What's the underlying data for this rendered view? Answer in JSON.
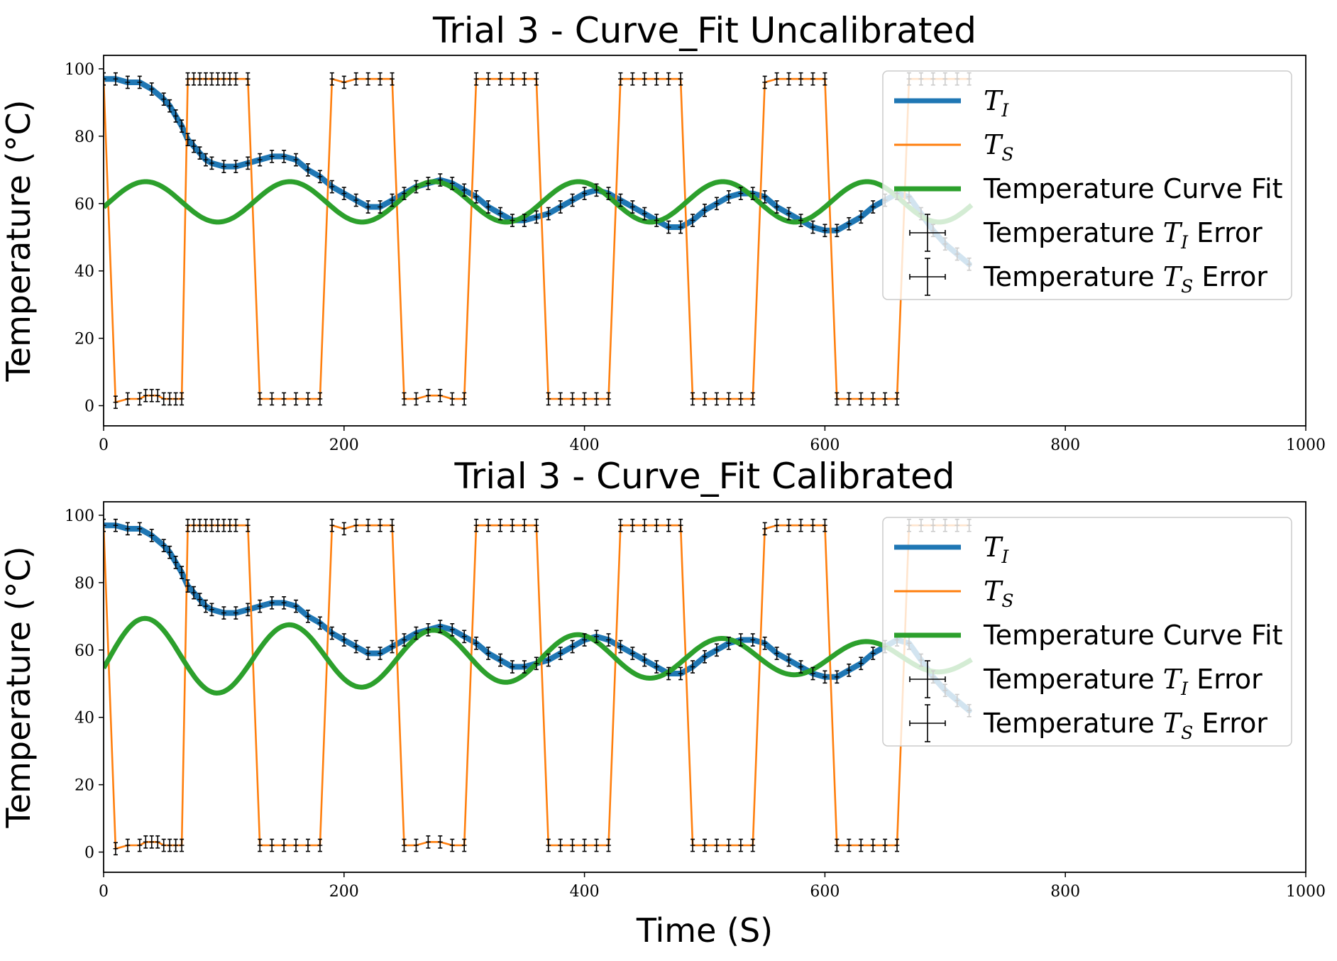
{
  "chart_data": [
    {
      "type": "line",
      "title": "Trial 3 - Curve_Fit Uncalibrated",
      "xlabel": "",
      "ylabel": "Temperature (°C)",
      "xlim": [
        0,
        1000
      ],
      "ylim": [
        -6,
        104
      ],
      "xticks": [
        0,
        200,
        400,
        600,
        800,
        1000
      ],
      "yticks": [
        0,
        20,
        40,
        60,
        80,
        100
      ],
      "grid": false,
      "legend_position": "top-right",
      "legend": [
        {
          "kind": "line",
          "color": "#1f77b4",
          "base": "T",
          "sub": "I",
          "prefix": "",
          "suffix": ""
        },
        {
          "kind": "line",
          "color": "#ff7f0e",
          "base": "T",
          "sub": "S",
          "prefix": "",
          "suffix": ""
        },
        {
          "kind": "line",
          "color": "#2ca02c",
          "base": "",
          "sub": "",
          "prefix": "Temperature Curve Fit",
          "suffix": ""
        },
        {
          "kind": "errorbar",
          "color": "#000000",
          "base": "T",
          "sub": "I",
          "prefix": "Temperature ",
          "suffix": " Error"
        },
        {
          "kind": "errorbar",
          "color": "#000000",
          "base": "T",
          "sub": "S",
          "prefix": "Temperature ",
          "suffix": " Error"
        }
      ],
      "fit": {
        "mean": 60.5,
        "amplitude": 6,
        "decay": 0,
        "period": 120,
        "phase_peak": 35,
        "x_start": 0,
        "x_end": 723
      },
      "error": {
        "y_err": 1.8,
        "x_err": 2
      }
    },
    {
      "type": "line",
      "title": "Trial 3 - Curve_Fit Calibrated",
      "xlabel": "Time (S)",
      "ylabel": "Temperature (°C)",
      "xlim": [
        0,
        1000
      ],
      "ylim": [
        -6,
        104
      ],
      "xticks": [
        0,
        200,
        400,
        600,
        800,
        1000
      ],
      "yticks": [
        0,
        20,
        40,
        60,
        80,
        100
      ],
      "grid": false,
      "legend_position": "top-right",
      "legend": [
        {
          "kind": "line",
          "color": "#1f77b4",
          "base": "T",
          "sub": "I",
          "prefix": "",
          "suffix": ""
        },
        {
          "kind": "line",
          "color": "#ff7f0e",
          "base": "T",
          "sub": "S",
          "prefix": "",
          "suffix": ""
        },
        {
          "kind": "line",
          "color": "#2ca02c",
          "base": "",
          "sub": "",
          "prefix": "Temperature Curve Fit",
          "suffix": ""
        },
        {
          "kind": "errorbar",
          "color": "#000000",
          "base": "T",
          "sub": "I",
          "prefix": "Temperature ",
          "suffix": " Error"
        },
        {
          "kind": "errorbar",
          "color": "#000000",
          "base": "T",
          "sub": "S",
          "prefix": "Temperature ",
          "suffix": " Error"
        }
      ],
      "fit": {
        "mean": 57.8,
        "amplitude": 12.2,
        "decay": 0.0015,
        "period": 120,
        "phase_peak": 35,
        "x_start": 0,
        "x_end": 723
      },
      "error": {
        "y_err": 1.8,
        "x_err": 2
      }
    }
  ],
  "series": {
    "T_I": {
      "name": "T_I",
      "color": "#1f77b4",
      "x": [
        0,
        10,
        20,
        30,
        40,
        50,
        55,
        60,
        65,
        70,
        75,
        80,
        85,
        90,
        100,
        110,
        120,
        130,
        140,
        150,
        160,
        170,
        180,
        190,
        200,
        210,
        220,
        230,
        240,
        250,
        260,
        270,
        280,
        290,
        300,
        310,
        320,
        330,
        340,
        350,
        360,
        370,
        380,
        390,
        400,
        410,
        420,
        430,
        440,
        450,
        460,
        470,
        480,
        490,
        500,
        510,
        520,
        530,
        540,
        550,
        560,
        570,
        580,
        590,
        600,
        610,
        620,
        630,
        640,
        650,
        660,
        670,
        680,
        690,
        700,
        710,
        720
      ],
      "y": [
        97,
        97,
        96,
        96,
        94,
        91,
        89,
        86,
        83,
        79,
        77,
        75,
        73,
        72,
        71,
        71,
        72,
        73,
        74,
        74,
        73,
        70,
        68,
        65,
        63,
        61,
        59,
        59,
        61,
        63,
        65,
        66,
        67,
        66,
        64,
        62,
        59,
        57,
        55,
        55,
        56,
        57,
        59,
        61,
        63,
        64,
        63,
        61,
        59,
        57,
        55,
        53,
        53,
        55,
        58,
        60,
        62,
        63,
        63,
        62,
        59,
        57,
        55,
        53,
        52,
        52,
        54,
        56,
        59,
        61,
        63,
        62,
        57,
        52,
        48,
        45,
        42
      ]
    },
    "T_S": {
      "name": "T_S",
      "color": "#ff7f0e",
      "x": [
        0,
        10,
        20,
        30,
        35,
        40,
        45,
        50,
        55,
        60,
        65,
        70,
        75,
        80,
        85,
        90,
        95,
        100,
        105,
        110,
        120,
        130,
        140,
        150,
        160,
        170,
        180,
        190,
        200,
        210,
        220,
        230,
        240,
        250,
        260,
        270,
        280,
        290,
        300,
        310,
        320,
        330,
        340,
        350,
        360,
        370,
        380,
        390,
        400,
        410,
        420,
        430,
        440,
        450,
        460,
        470,
        480,
        490,
        500,
        510,
        520,
        530,
        540,
        550,
        560,
        570,
        580,
        590,
        600,
        610,
        620,
        630,
        640,
        650,
        660,
        670,
        680,
        690,
        700,
        710,
        720
      ],
      "y": [
        97,
        1,
        2,
        2,
        3,
        3,
        3,
        2,
        2,
        2,
        2,
        97,
        97,
        97,
        97,
        97,
        97,
        97,
        97,
        97,
        97,
        2,
        2,
        2,
        2,
        2,
        2,
        97,
        96,
        97,
        97,
        97,
        97,
        2,
        2,
        3,
        3,
        2,
        2,
        97,
        97,
        97,
        97,
        97,
        97,
        2,
        2,
        2,
        2,
        2,
        2,
        97,
        97,
        97,
        97,
        97,
        97,
        2,
        2,
        2,
        2,
        2,
        2,
        96,
        97,
        97,
        97,
        97,
        97,
        2,
        2,
        2,
        2,
        2,
        2,
        97,
        97,
        97,
        97,
        97,
        97
      ]
    }
  }
}
